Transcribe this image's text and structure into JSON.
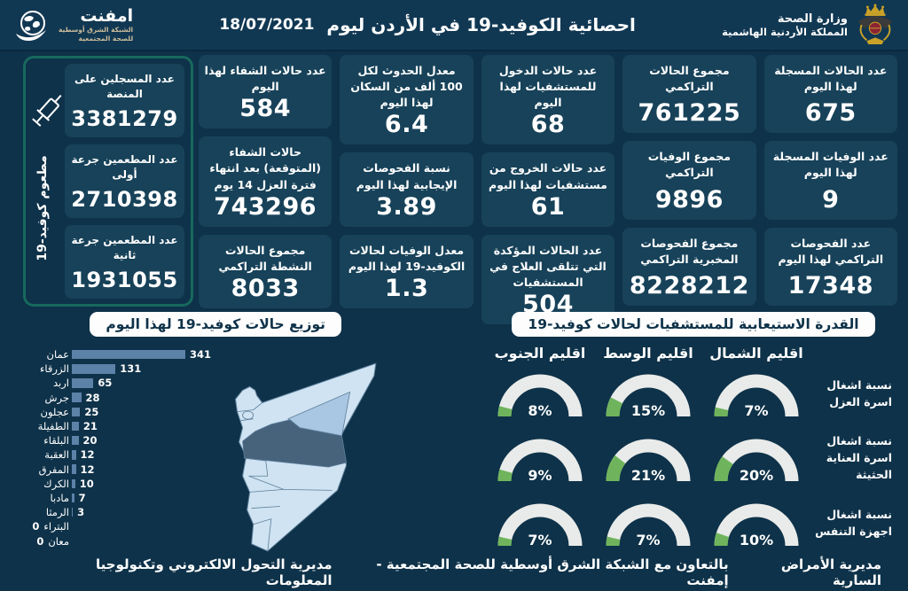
{
  "theme": {
    "bg": "#0e3249",
    "header-bg": "#113853",
    "card": "#174259",
    "teal": "#17695e",
    "bar": "#5d82a8",
    "track": "#e9ebea",
    "green": "#6fb45c",
    "map-base": "#cfe3f2",
    "map-stroke": "#5e7f9b",
    "map-amman": "#47637c",
    "map-zarqa": "#a9c6e2"
  },
  "header": {
    "title": "احصائية الكوفيد-19 في الأردن ليوم",
    "date": "18/07/2021",
    "ministry_line1": "وزارة الصحة",
    "ministry_line2": "المملكة الأردنية الهاشمية",
    "emphnet_name": "امفنت",
    "emphnet_sub1": "الشبكة الشرق أوسطية",
    "emphnet_sub2": "للصحة المجتمعية"
  },
  "stats_columns": [
    {
      "cards": [
        {
          "label": "عدد الحالات المسجلة لهذا اليوم",
          "value": "675"
        },
        {
          "label": "عدد الوفيات المسجلة لهذا اليوم",
          "value": "9"
        },
        {
          "label": "عدد الفحوصات التراكمي لهذا اليوم",
          "value": "17348"
        }
      ]
    },
    {
      "cards": [
        {
          "label": "مجموع الحالات التراكمي",
          "value": "761225"
        },
        {
          "label": "مجموع الوفيات التراكمي",
          "value": "9896"
        },
        {
          "label": "مجموع الفحوصات المخبرية التراكمي",
          "value": "8228212"
        }
      ]
    },
    {
      "cards": [
        {
          "label": "عدد حالات الدخول للمستشفيات لهذا اليوم",
          "value": "68"
        },
        {
          "label": "عدد حالات الخروج من مستشفيات لهذا اليوم",
          "value": "61"
        },
        {
          "label": "عدد الحالات المؤكدة التي تتلقى العلاج في المستشفيات",
          "value": "504"
        }
      ]
    },
    {
      "cards": [
        {
          "label": "معدل الحدوث لكل 100 ألف من السكان لهذا اليوم",
          "value": "6.4"
        },
        {
          "label": "نسبة الفحوصات الإيجابية لهذا اليوم",
          "value": "3.89"
        },
        {
          "label": "معدل الوفيات لحالات الكوفيد-19 لهذا اليوم",
          "value": "1.3"
        }
      ]
    },
    {
      "cards": [
        {
          "label": "عدد حالات الشفاء لهذا اليوم",
          "value": "584"
        },
        {
          "label": "حالات الشفاء (المتوقعة) بعد انتهاء فترة العزل 14 يوم",
          "value": "743296"
        },
        {
          "label": "مجموع الحالات النشطة التراكمي",
          "value": "8033"
        }
      ]
    }
  ],
  "vaccine_panel": {
    "vertical_label": "مطعوم كوفيد-19",
    "cards": [
      {
        "label": "عدد المسجلين على المنصة",
        "value": "3381279"
      },
      {
        "label": "عدد المطعمين جرعة أولى",
        "value": "2710398"
      },
      {
        "label": "عدد المطعمين جرعة ثانية",
        "value": "1931055"
      }
    ]
  },
  "chart_data": [
    {
      "type": "bar",
      "orientation": "horizontal",
      "title": "توزيع حالات كوفيد-19 لهذا اليوم",
      "categories": [
        "عمان",
        "الزرقاء",
        "اربد",
        "جرش",
        "عجلون",
        "الطفيلة",
        "البلقاء",
        "العقبة",
        "المفرق",
        "الكرك",
        "مادبا",
        "الرمثا",
        "البتراء",
        "معان"
      ],
      "values": [
        341,
        131,
        65,
        28,
        25,
        21,
        20,
        12,
        12,
        10,
        7,
        3,
        0,
        0
      ],
      "xlim": [
        0,
        341
      ],
      "bar_color": "#5d82a8",
      "value_labels": true
    },
    {
      "type": "gauge-grid",
      "title": "القدرة الاستيعابية للمستشفيات لحالات كوفيد-19",
      "columns": [
        "اقليم الجنوب",
        "اقليم الوسط",
        "اقليم الشمال"
      ],
      "rows": [
        {
          "label": "نسبة اشغال اسرة العزل",
          "values": [
            8,
            15,
            7
          ]
        },
        {
          "label": "نسبة اشغال اسرة العناية الحثيثة",
          "values": [
            9,
            21,
            20
          ]
        },
        {
          "label": "نسبة اشغال اجهزة التنفس",
          "values": [
            7,
            7,
            10
          ]
        }
      ],
      "unit": "%",
      "range": [
        0,
        100
      ],
      "gauge_colors": {
        "track": "#e9ebea",
        "fill": "#6fb45c"
      }
    }
  ],
  "map": {
    "highlighted_region_dark": "عمان",
    "highlighted_region_medium": "الزرقاء"
  },
  "footer": {
    "right": "مديرية الأمراض السارية",
    "center": "بالتعاون مع الشبكة الشرق أوسطية للصحة المجتمعية - إمفنت",
    "left": "مديرية التحول الالكتروني وتكنولوجيا المعلومات"
  }
}
